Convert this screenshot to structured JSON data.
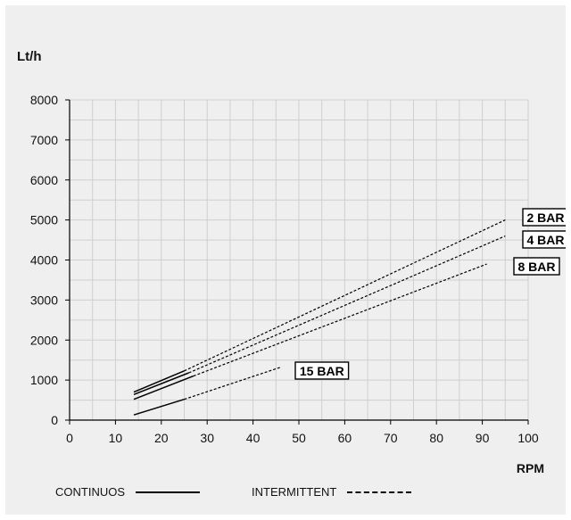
{
  "chart_data": {
    "type": "line",
    "ylabel": "Lt/h",
    "xlabel": "RPM",
    "xlim": [
      0,
      100
    ],
    "ylim": [
      0,
      8000
    ],
    "x_ticks": [
      0,
      10,
      20,
      30,
      40,
      50,
      60,
      70,
      80,
      90,
      100
    ],
    "y_ticks": [
      0,
      1000,
      2000,
      3000,
      4000,
      5000,
      6000,
      7000,
      8000
    ],
    "grid": true,
    "series": [
      {
        "name": "2 BAR",
        "continuous": [
          [
            14,
            700
          ],
          [
            25,
            1230
          ]
        ],
        "intermittent": [
          [
            25,
            1230
          ],
          [
            95,
            5000
          ]
        ]
      },
      {
        "name": "4 BAR",
        "continuous": [
          [
            14,
            640
          ],
          [
            26,
            1180
          ]
        ],
        "intermittent": [
          [
            26,
            1180
          ],
          [
            95,
            4600
          ]
        ]
      },
      {
        "name": "8 BAR",
        "continuous": [
          [
            14,
            520
          ],
          [
            27,
            1100
          ]
        ],
        "intermittent": [
          [
            27,
            1100
          ],
          [
            91,
            3900
          ]
        ]
      },
      {
        "name": "15 BAR",
        "continuous": [
          [
            14,
            130
          ],
          [
            25,
            520
          ]
        ],
        "intermittent": [
          [
            25,
            520
          ],
          [
            46,
            1320
          ]
        ]
      }
    ],
    "legend": {
      "continuous_label": "CONTINUOS",
      "intermittent_label": "INTERMITTENT"
    }
  }
}
